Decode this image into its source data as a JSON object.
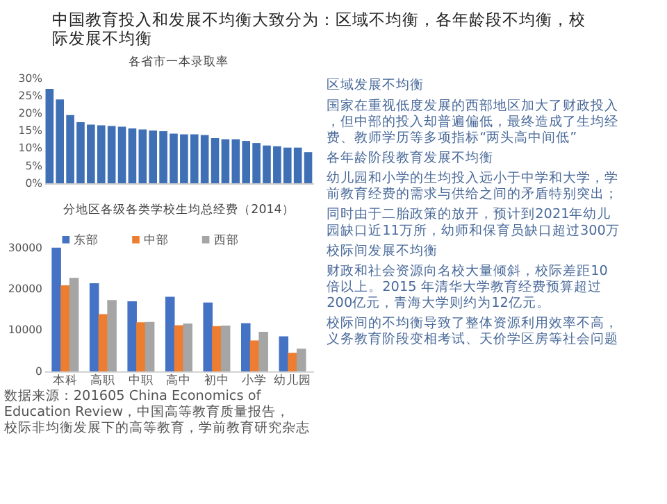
{
  "chart_data": [
    {
      "type": "other",
      "title": "中国教育投入和发展不均衡大致分为：区域不均衡，各年龄段不均衡，校际发展不均衡",
      "annotations": [
        "区域发展不均衡",
        "国家在重视低度发展的西部地区加大了财政投入，但中部的投入却普遍偏低，最终造成了生均经费、教师学历等多项指标“两头高中间低”",
        "各年龄阶段教育发展不均衡",
        "幼儿园和小学的生均投入远小于中学和大学，学前教育经费的需求与供给之间的矛盾特别突出；",
        "同时由于二胎政策的放开，预计到2021年幼儿园缺口近11万所，幼师和保育员缺口超过300万",
        "校际间发展不均衡",
        "财政和社会资源向名校大量倾斜，校际差距10倍以上。2015 年清华大学教育经费预算超过200亿元，青海大学则约为12亿元。",
        "校际间的不均衡导致了整体资源利用效率不高，义务教育阶段变相考试、天价学区房等社会问题"
      ]
    },
    {
      "type": "bar",
      "title": "各省市一本录取率",
      "categories": [
        null,
        null,
        null,
        null,
        null,
        null,
        null,
        null,
        null,
        null,
        null,
        null,
        null,
        null,
        null,
        null,
        null,
        null,
        null,
        null,
        null,
        null,
        null,
        null,
        null,
        null
      ],
      "values": [
        27,
        24,
        19.5,
        17.5,
        16.8,
        16.6,
        16.4,
        16.2,
        15.7,
        15.4,
        15.1,
        14.9,
        14.2,
        14.0,
        14.0,
        13.8,
        12.9,
        12.6,
        12.6,
        12.1,
        11.5,
        10.8,
        10.6,
        10.2,
        10.2,
        8.9
      ],
      "color": "#3f6fb5",
      "ylim": [
        0,
        30
      ],
      "yticks": [
        {
          "value": 0,
          "label": "0%"
        },
        {
          "value": 5,
          "label": "5%"
        },
        {
          "value": 10,
          "label": "10%"
        },
        {
          "value": 15,
          "label": "15%"
        },
        {
          "value": 20,
          "label": "20%"
        },
        {
          "value": 25,
          "label": "25%"
        },
        {
          "value": 30,
          "label": "30%"
        }
      ],
      "grid": false
    },
    {
      "type": "bar",
      "title": "分地区各级各类学校生均总经费（2014）",
      "categories": [
        "本科",
        "高职",
        "中职",
        "高中",
        "初中",
        "小学",
        "幼儿园"
      ],
      "series": [
        {
          "name": "东部",
          "color": "#4472c4",
          "values": [
            30000,
            21400,
            17000,
            18100,
            16700,
            11700,
            8500
          ]
        },
        {
          "name": "中部",
          "color": "#ed7d31",
          "values": [
            20900,
            13900,
            11900,
            11200,
            11000,
            7500,
            4500
          ]
        },
        {
          "name": "西部",
          "color": "#a5a5a5",
          "values": [
            22700,
            17300,
            12000,
            11600,
            11100,
            9600,
            5500
          ]
        }
      ],
      "ylim": [
        0,
        30000
      ],
      "yticks": [
        0,
        10000,
        20000,
        30000
      ],
      "grid": false,
      "legend": "top",
      "annotations": [
        "数据来源：201605 China Economics of Education Review，中国高等教育质量报告，校际非均衡发展下的高等教育，学前教育研究杂志"
      ]
    }
  ]
}
